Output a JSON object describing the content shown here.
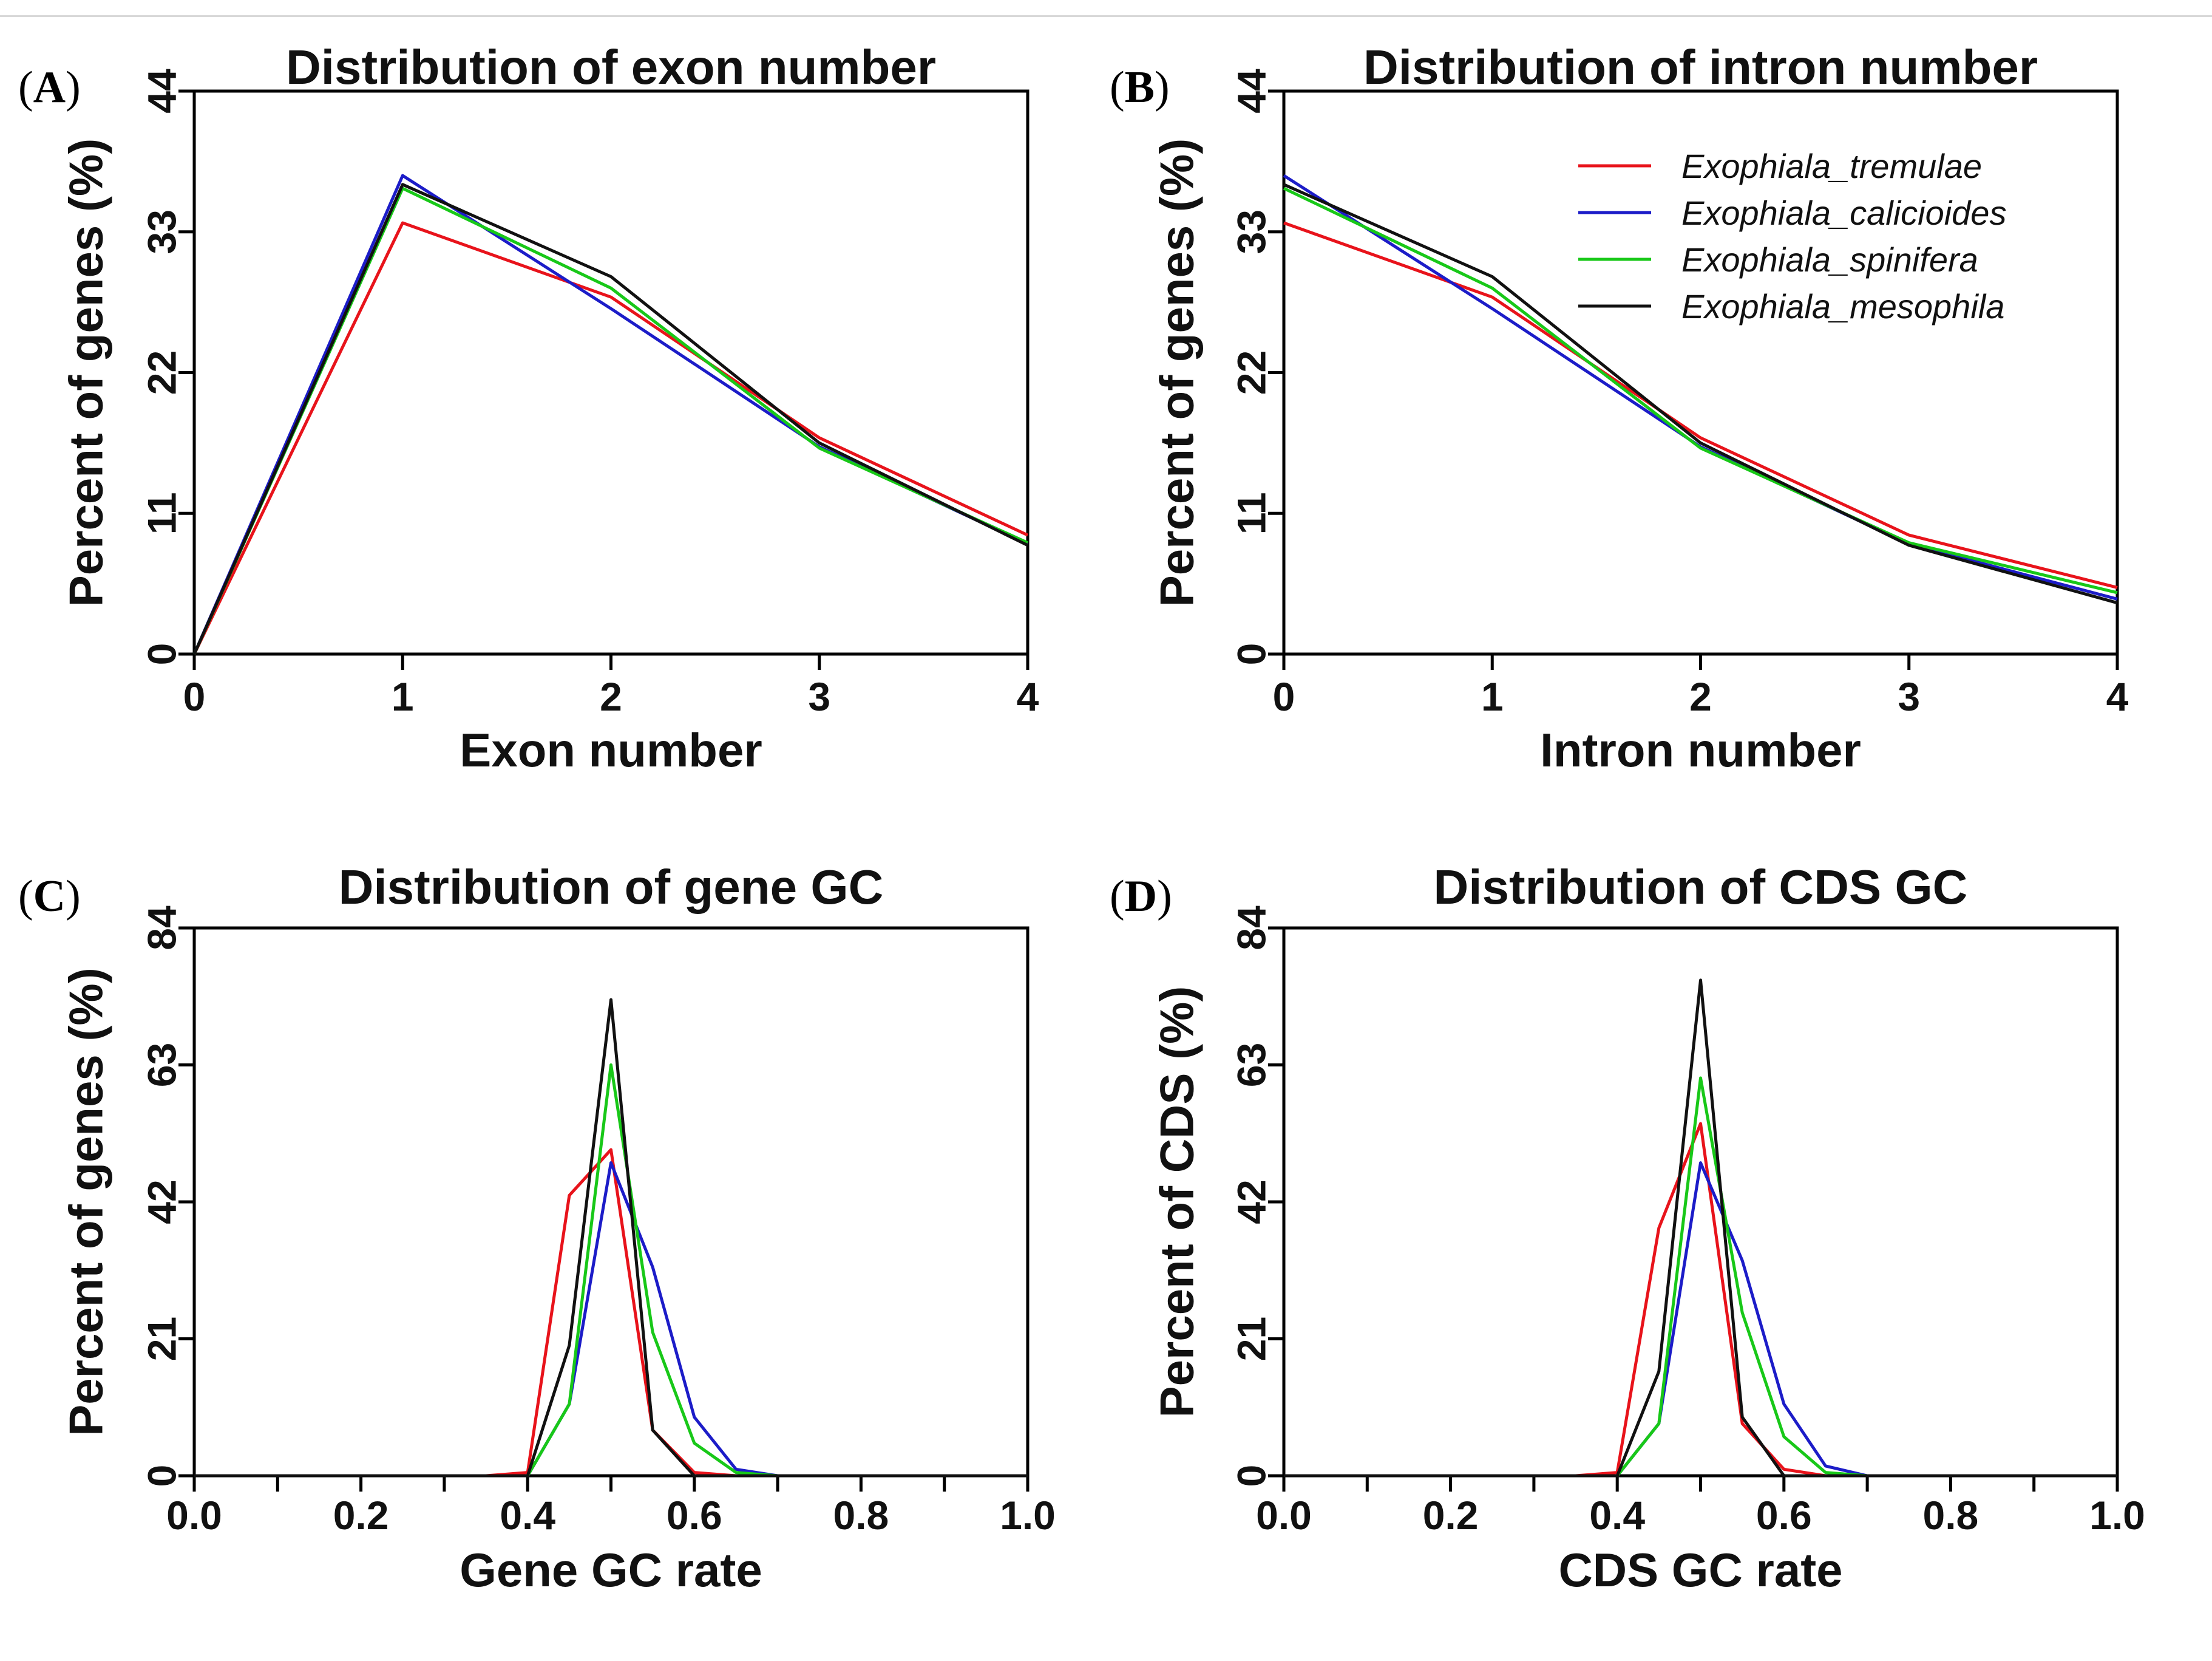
{
  "figure": {
    "species": [
      "Exophiala_tremulae",
      "Exophiala_calicioides",
      "Exophiala_spinifera",
      "Exophiala_mesophila"
    ],
    "colors": {
      "Exophiala_tremulae": "#e8131b",
      "Exophiala_calicioides": "#1c1cc8",
      "Exophiala_spinifera": "#18c818",
      "Exophiala_mesophila": "#111111"
    }
  },
  "chart_data": [
    {
      "id": "A",
      "letter": "A",
      "type": "line",
      "title": "Distribution of exon number",
      "xlabel": "Exon number",
      "ylabel": "Percent of genes (%)",
      "xlim": [
        0,
        4
      ],
      "ylim": [
        0,
        44
      ],
      "xticks": [
        0,
        1,
        2,
        3,
        4
      ],
      "xtick_labels": [
        "0",
        "1",
        "2",
        "3",
        "4"
      ],
      "yticks": [
        0,
        11,
        22,
        33,
        44
      ],
      "ytick_labels": [
        "0",
        "11",
        "22",
        "33",
        "44"
      ],
      "legend": false,
      "x": [
        0,
        1,
        2,
        3,
        4
      ],
      "series": [
        {
          "name": "Exophiala_tremulae",
          "values": [
            0,
            33.7,
            27.9,
            16.9,
            9.3
          ]
        },
        {
          "name": "Exophiala_calicioides",
          "values": [
            0,
            37.4,
            27.0,
            16.2,
            8.6
          ]
        },
        {
          "name": "Exophiala_spinifera",
          "values": [
            0,
            36.4,
            28.6,
            16.1,
            8.7
          ]
        },
        {
          "name": "Exophiala_mesophila",
          "values": [
            0,
            36.7,
            29.5,
            16.5,
            8.5
          ]
        }
      ]
    },
    {
      "id": "B",
      "letter": "B",
      "type": "line",
      "title": "Distribution of intron number",
      "xlabel": "Intron number",
      "ylabel": "Percent of genes (%)",
      "xlim": [
        0,
        4
      ],
      "ylim": [
        0,
        44
      ],
      "xticks": [
        0,
        1,
        2,
        3,
        4
      ],
      "xtick_labels": [
        "0",
        "1",
        "2",
        "3",
        "4"
      ],
      "yticks": [
        0,
        11,
        22,
        33,
        44
      ],
      "ytick_labels": [
        "0",
        "11",
        "22",
        "33",
        "44"
      ],
      "legend": true,
      "legend_position": "top-right",
      "x": [
        0,
        1,
        2,
        3,
        4
      ],
      "series": [
        {
          "name": "Exophiala_tremulae",
          "values": [
            33.7,
            27.9,
            16.9,
            9.3,
            5.2
          ]
        },
        {
          "name": "Exophiala_calicioides",
          "values": [
            37.4,
            27.0,
            16.2,
            8.6,
            4.3
          ]
        },
        {
          "name": "Exophiala_spinifera",
          "values": [
            36.4,
            28.6,
            16.1,
            8.7,
            4.8
          ]
        },
        {
          "name": "Exophiala_mesophila",
          "values": [
            36.7,
            29.5,
            16.5,
            8.5,
            4.0
          ]
        }
      ]
    },
    {
      "id": "C",
      "letter": "C",
      "type": "line",
      "title": "Distribution of gene GC",
      "xlabel": "Gene GC rate",
      "ylabel": "Percent of genes (%)",
      "xlim": [
        0,
        1
      ],
      "ylim": [
        0,
        84
      ],
      "xticks": [
        0,
        0.2,
        0.4,
        0.6,
        0.8,
        1.0
      ],
      "xtick_labels": [
        "0.0",
        "0.2",
        "0.4",
        "0.6",
        "0.8",
        "1.0"
      ],
      "yticks": [
        0,
        21,
        42,
        63,
        84
      ],
      "ytick_labels": [
        "0",
        "21",
        "42",
        "63",
        "84"
      ],
      "legend": false,
      "x": [
        0,
        0.05,
        0.1,
        0.15,
        0.2,
        0.25,
        0.3,
        0.35,
        0.4,
        0.45,
        0.5,
        0.55,
        0.6,
        0.65,
        0.7,
        0.75,
        0.8,
        0.85,
        0.9,
        0.95,
        1.0
      ],
      "series": [
        {
          "name": "Exophiala_tremulae",
          "values": [
            0,
            0,
            0,
            0,
            0,
            0,
            0,
            0,
            0.5,
            43,
            50,
            7,
            0.5,
            0,
            0,
            0,
            0,
            0,
            0,
            0,
            0
          ]
        },
        {
          "name": "Exophiala_calicioides",
          "values": [
            0,
            0,
            0,
            0,
            0,
            0,
            0,
            0,
            0,
            11,
            48,
            32,
            9,
            1,
            0,
            0,
            0,
            0,
            0,
            0,
            0
          ]
        },
        {
          "name": "Exophiala_spinifera",
          "values": [
            0,
            0,
            0,
            0,
            0,
            0,
            0,
            0,
            0,
            11,
            63,
            22,
            5,
            0.5,
            0,
            0,
            0,
            0,
            0,
            0,
            0
          ]
        },
        {
          "name": "Exophiala_mesophila",
          "values": [
            0,
            0,
            0,
            0,
            0,
            0,
            0,
            0,
            0,
            20,
            73,
            7,
            0,
            0,
            0,
            0,
            0,
            0,
            0,
            0,
            0
          ]
        }
      ]
    },
    {
      "id": "D",
      "letter": "D",
      "type": "line",
      "title": "Distribution of CDS GC",
      "xlabel": "CDS GC rate",
      "ylabel": "Percent of CDS (%)",
      "xlim": [
        0,
        1
      ],
      "ylim": [
        0,
        84
      ],
      "xticks": [
        0,
        0.2,
        0.4,
        0.6,
        0.8,
        1.0
      ],
      "xtick_labels": [
        "0.0",
        "0.2",
        "0.4",
        "0.6",
        "0.8",
        "1.0"
      ],
      "yticks": [
        0,
        21,
        42,
        63,
        84
      ],
      "ytick_labels": [
        "0",
        "21",
        "42",
        "63",
        "84"
      ],
      "legend": false,
      "x": [
        0,
        0.05,
        0.1,
        0.15,
        0.2,
        0.25,
        0.3,
        0.35,
        0.4,
        0.45,
        0.5,
        0.55,
        0.6,
        0.65,
        0.7,
        0.75,
        0.8,
        0.85,
        0.9,
        0.95,
        1.0
      ],
      "series": [
        {
          "name": "Exophiala_tremulae",
          "values": [
            0,
            0,
            0,
            0,
            0,
            0,
            0,
            0,
            0.5,
            38,
            54,
            8,
            1,
            0,
            0,
            0,
            0,
            0,
            0,
            0,
            0
          ]
        },
        {
          "name": "Exophiala_calicioides",
          "values": [
            0,
            0,
            0,
            0,
            0,
            0,
            0,
            0,
            0,
            8,
            48,
            33,
            11,
            1.5,
            0,
            0,
            0,
            0,
            0,
            0,
            0
          ]
        },
        {
          "name": "Exophiala_spinifera",
          "values": [
            0,
            0,
            0,
            0,
            0,
            0,
            0,
            0,
            0,
            8,
            61,
            25,
            6,
            0.5,
            0,
            0,
            0,
            0,
            0,
            0,
            0
          ]
        },
        {
          "name": "Exophiala_mesophila",
          "values": [
            0,
            0,
            0,
            0,
            0,
            0,
            0,
            0,
            0,
            16,
            76,
            9,
            0,
            0,
            0,
            0,
            0,
            0,
            0,
            0,
            0
          ]
        }
      ]
    }
  ]
}
